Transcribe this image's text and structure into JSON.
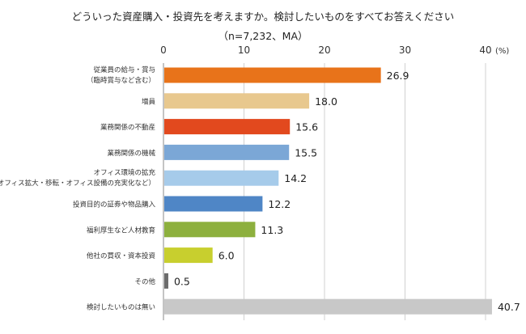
{
  "chart_data": {
    "type": "bar",
    "orientation": "horizontal",
    "title": "どういった資産購入・投資先を考えますか。検討したいものをすべてお答えください",
    "subtitle": "（n=7,232、MA）",
    "unit_label": "(%)",
    "xlim": [
      0,
      40
    ],
    "ticks": [
      "0",
      "10",
      "20",
      "30",
      "40"
    ],
    "grid": true,
    "categories": [
      [
        "従業員の給与・賞与",
        "（臨時賞与など含む）"
      ],
      [
        "増員"
      ],
      [
        "業務関係の不動産"
      ],
      [
        "業務関係の機械"
      ],
      [
        "オフィス環境の拡充",
        "（オフィス拡大・移転・オフィス設備の充実化など）"
      ],
      [
        "投資目的の証券や物品購入"
      ],
      [
        "福利厚生など人材教育"
      ],
      [
        "他社の買収・資本投資"
      ],
      [
        "その他"
      ],
      [
        "検討したいものは無い"
      ]
    ],
    "values": [
      26.9,
      18.0,
      15.6,
      15.5,
      14.2,
      12.2,
      11.3,
      6.0,
      0.5,
      40.7
    ],
    "data_labels": [
      "26.9",
      "18.0",
      "15.6",
      "15.5",
      "14.2",
      "12.2",
      "11.3",
      "6.0",
      "0.5",
      "40.7"
    ],
    "colors": [
      "#E8731A",
      "#E8C88E",
      "#E2491E",
      "#7BA7D6",
      "#A6CBEA",
      "#4F86C6",
      "#8DB03E",
      "#C8CF2E",
      "#6B6B6B",
      "#C8C8C8"
    ]
  }
}
